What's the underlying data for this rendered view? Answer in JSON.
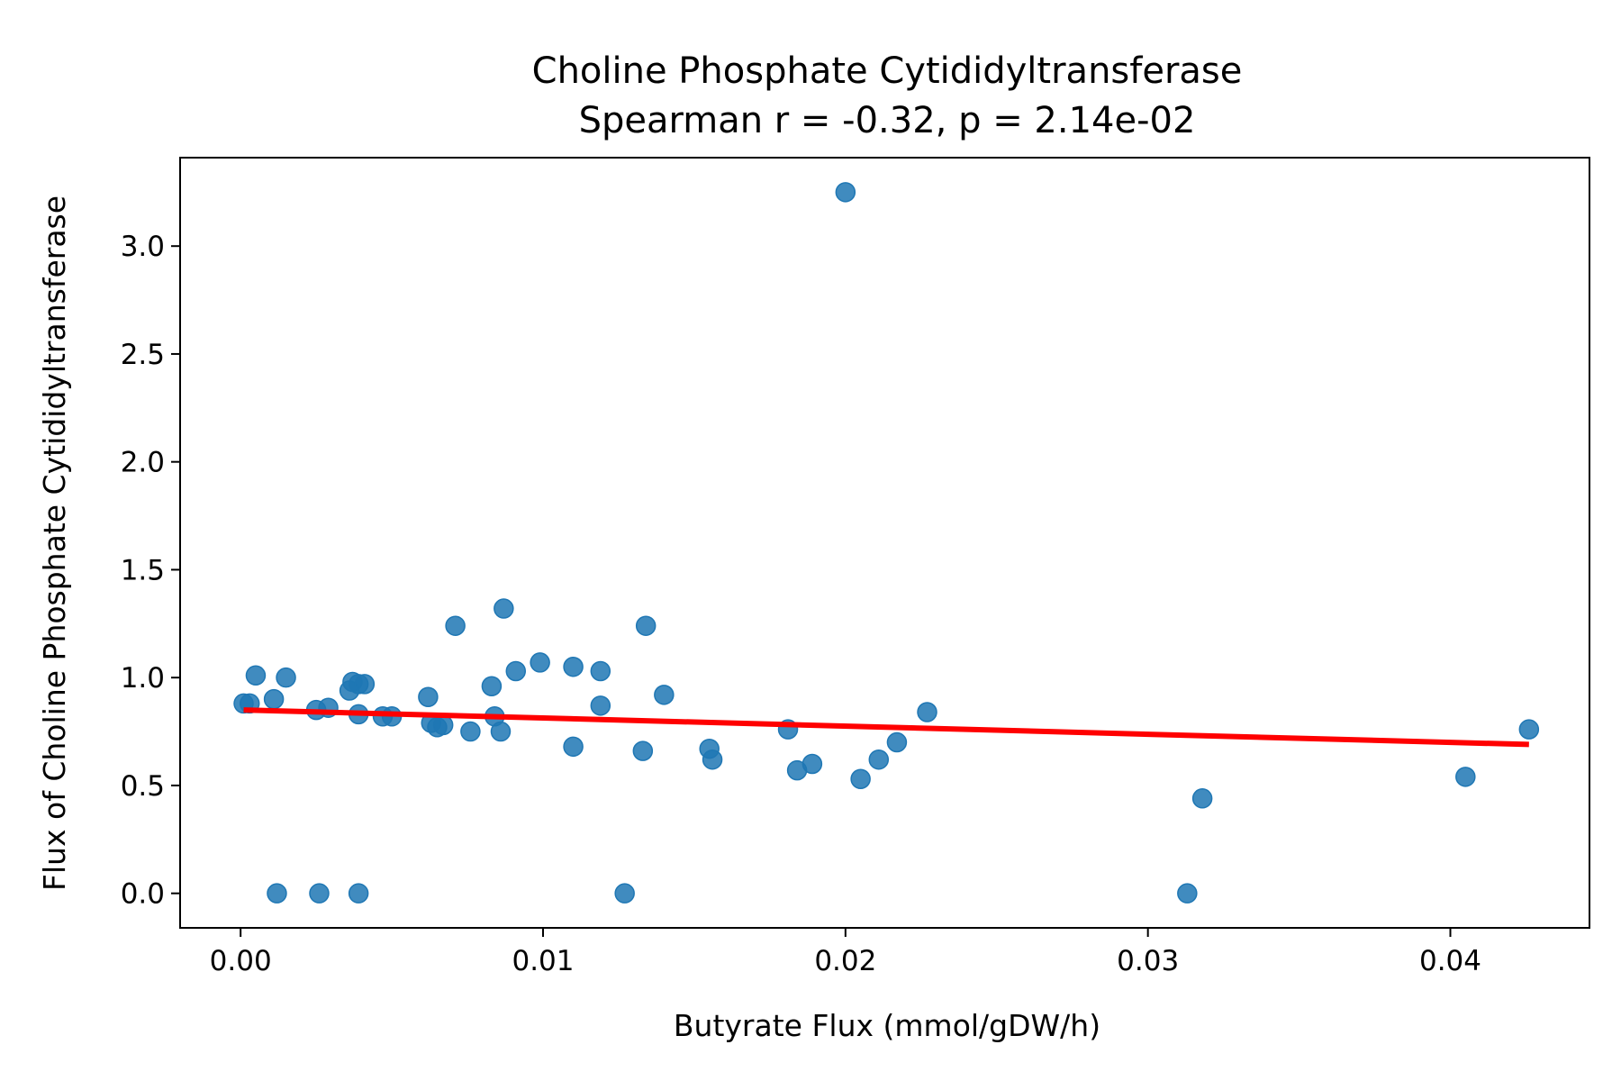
{
  "chart_data": {
    "type": "scatter",
    "title": "Choline Phosphate Cytididyltransferase",
    "subtitle": "Spearman r = -0.32, p = 2.14e-02",
    "xlabel": "Butyrate Flux (mmol/gDW/h)",
    "ylabel": "Flux of Choline Phosphate Cytididyltransferase",
    "xlim": [
      -0.002,
      0.0446
    ],
    "ylim": [
      -0.16,
      3.41
    ],
    "grid": false,
    "legend": "none",
    "xticks": [
      {
        "value": 0.0,
        "label": "0.00"
      },
      {
        "value": 0.01,
        "label": "0.01"
      },
      {
        "value": 0.02,
        "label": "0.02"
      },
      {
        "value": 0.03,
        "label": "0.03"
      },
      {
        "value": 0.04,
        "label": "0.04"
      }
    ],
    "yticks": [
      {
        "value": 0.0,
        "label": "0.0"
      },
      {
        "value": 0.5,
        "label": "0.5"
      },
      {
        "value": 1.0,
        "label": "1.0"
      },
      {
        "value": 1.5,
        "label": "1.5"
      },
      {
        "value": 2.0,
        "label": "2.0"
      },
      {
        "value": 2.5,
        "label": "2.5"
      },
      {
        "value": 3.0,
        "label": "3.0"
      }
    ],
    "colors": {
      "points": "#1f77b4",
      "fit_line": "#ff0000",
      "axes": "#000000"
    },
    "series": [
      {
        "x": [
          0.0001,
          0.0003,
          0.0005,
          0.0011,
          0.0015,
          0.0012,
          0.0025,
          0.0026,
          0.0029,
          0.0036,
          0.0037,
          0.0039,
          0.0039,
          0.0041,
          0.0039,
          0.0047,
          0.005,
          0.0062,
          0.0063,
          0.0065,
          0.0067,
          0.0071,
          0.0076,
          0.0083,
          0.0084,
          0.0086,
          0.0087,
          0.0091,
          0.0099,
          0.011,
          0.011,
          0.0119,
          0.0119,
          0.0127,
          0.0133,
          0.0134,
          0.014,
          0.0155,
          0.0156,
          0.0181,
          0.0184,
          0.0189,
          0.02,
          0.0205,
          0.0211,
          0.0217,
          0.0227,
          0.0313,
          0.0318,
          0.0405,
          0.0426
        ],
        "y": [
          0.88,
          0.88,
          1.01,
          0.9,
          1.0,
          0.0,
          0.85,
          0.0,
          0.86,
          0.94,
          0.98,
          0.97,
          0.83,
          0.97,
          0.0,
          0.82,
          0.82,
          0.91,
          0.79,
          0.77,
          0.78,
          1.24,
          0.75,
          0.96,
          0.82,
          0.75,
          1.32,
          1.03,
          1.07,
          1.05,
          0.68,
          1.03,
          0.87,
          0.0,
          0.66,
          1.24,
          0.92,
          0.67,
          0.62,
          0.76,
          0.57,
          0.6,
          3.25,
          0.53,
          0.62,
          0.7,
          0.84,
          0.0,
          0.44,
          0.54,
          0.76
        ]
      }
    ],
    "fit_line": {
      "x": [
        0.0001,
        0.0426
      ],
      "y": [
        0.85,
        0.69
      ]
    }
  }
}
